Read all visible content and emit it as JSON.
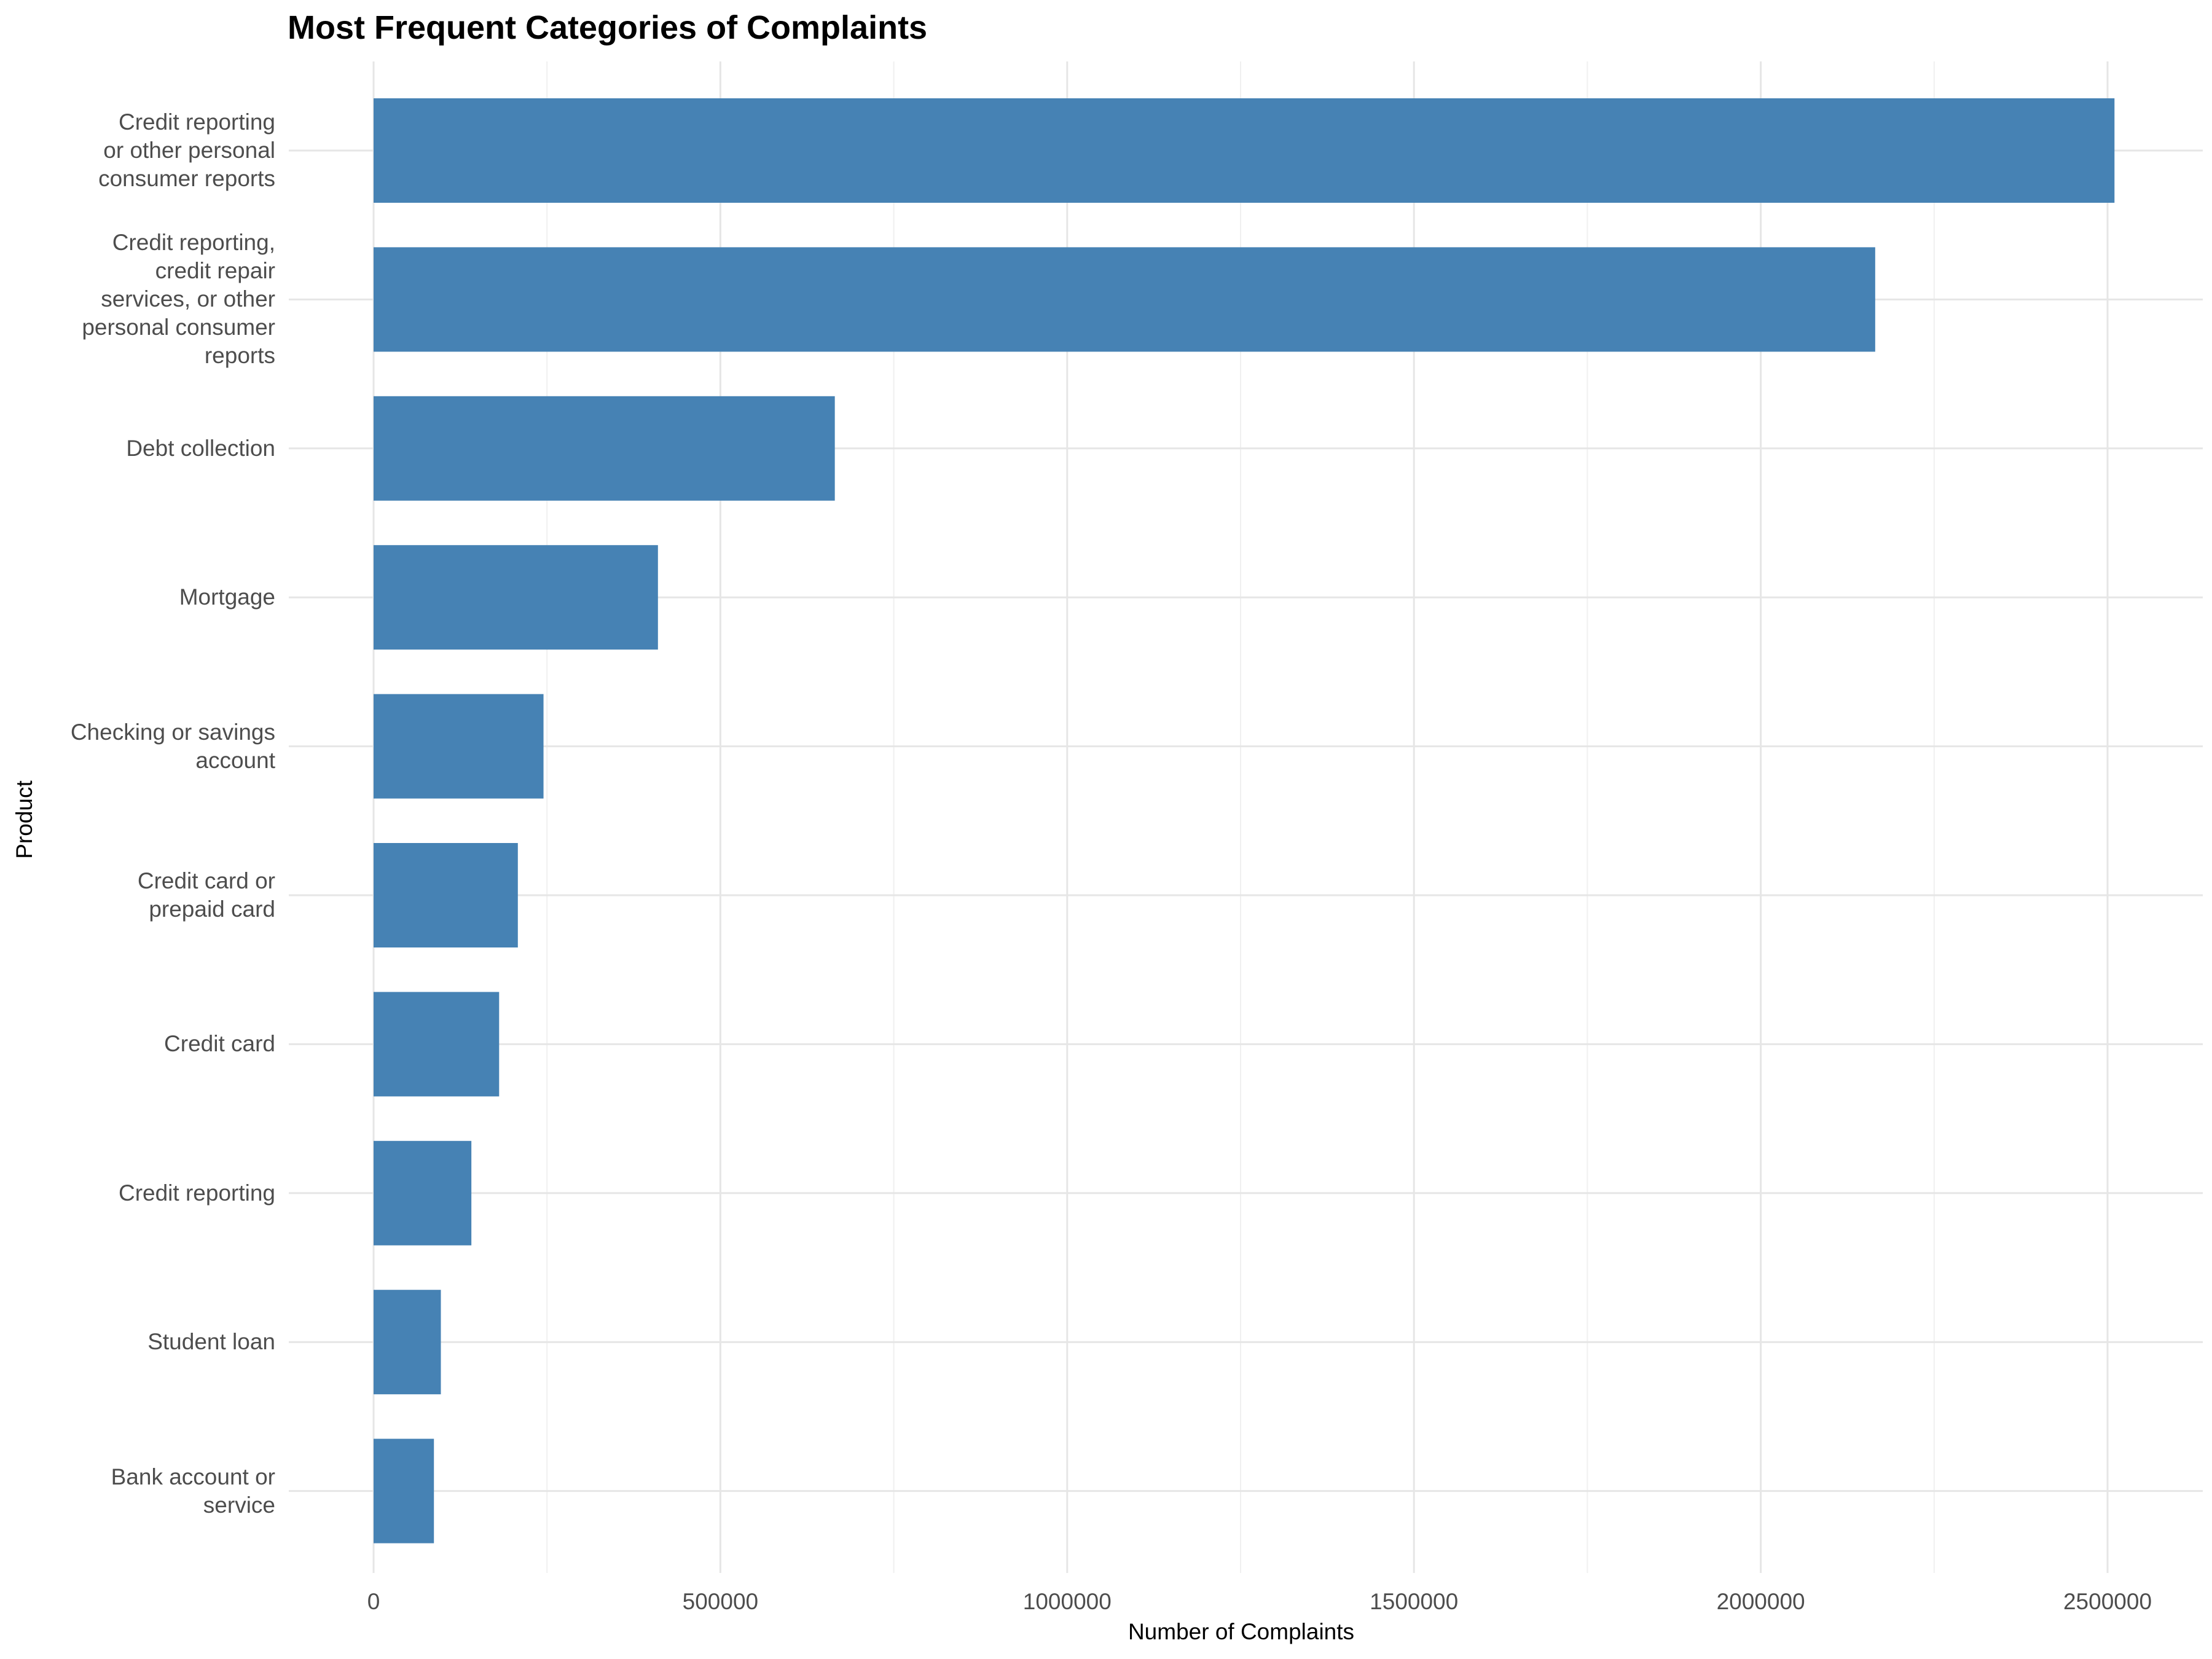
{
  "chart_data": {
    "type": "bar",
    "orientation": "horizontal",
    "title": "Most Frequent Categories of Complaints",
    "xlabel": "Number of Complaints",
    "ylabel": "Product",
    "xlim": [
      0,
      2600000
    ],
    "x_ticks": [
      "0",
      "500000",
      "1000000",
      "1500000",
      "2000000",
      "2500000"
    ],
    "x_tick_values": [
      0,
      500000,
      1000000,
      1500000,
      2000000,
      2500000
    ],
    "grid": true,
    "bar_color": "#4682b4",
    "categories": [
      "Credit reporting\nor other personal\nconsumer reports",
      "Credit reporting,\ncredit repair\nservices, or other\npersonal consumer\nreports",
      "Debt collection",
      "Mortgage",
      "Checking or savings\naccount",
      "Credit card or\nprepaid card",
      "Credit card",
      "Credit reporting",
      "Student loan",
      "Bank account or\nservice"
    ],
    "values": [
      2510000,
      2165000,
      665000,
      410000,
      245000,
      208000,
      181000,
      141000,
      97000,
      87000
    ]
  }
}
